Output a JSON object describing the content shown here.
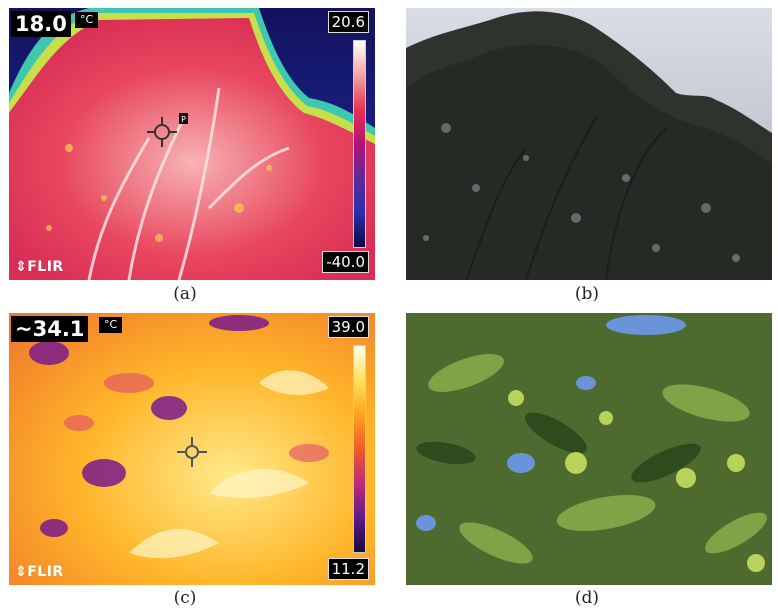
{
  "panels": {
    "a": {
      "caption": "(a)",
      "temp_reading": "18.0",
      "unit": "°C",
      "spot_marker": "P",
      "scale_max": "20.6",
      "scale_min": "-40.0",
      "brand": "FLIR",
      "palette": [
        "#ffffff",
        "#f4a3a3",
        "#e8314f",
        "#b0127a",
        "#5d2a9a",
        "#2a2fb0",
        "#0a0a40"
      ]
    },
    "b": {
      "caption": "(b)"
    },
    "c": {
      "caption": "(c)",
      "temp_reading": "~34.1",
      "unit": "°C",
      "scale_max": "39.0",
      "scale_min": "11.2",
      "brand": "FLIR",
      "palette": [
        "#ffffee",
        "#ffe15a",
        "#ffa21f",
        "#f05a2a",
        "#c2287a",
        "#5e1a8a",
        "#1a0a40"
      ]
    },
    "d": {
      "caption": "(d)"
    }
  }
}
